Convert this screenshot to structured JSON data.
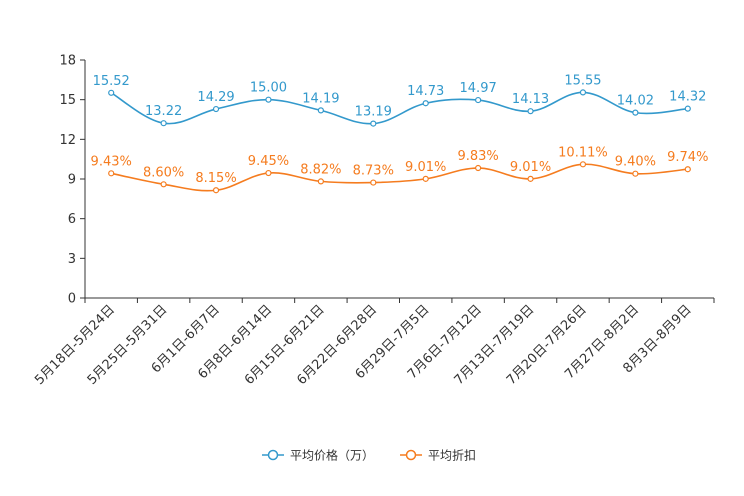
{
  "chart_data": {
    "type": "line",
    "title": "",
    "xlabel": "",
    "ylabel": "",
    "ylim": [
      0,
      18
    ],
    "yticks": [
      0,
      3,
      6,
      9,
      12,
      15,
      18
    ],
    "categories": [
      "5月18日-5月24日",
      "5月25日-5月31日",
      "6月1日-6月7日",
      "6月8日-6月14日",
      "6月15日-6月21日",
      "6月22日-6月28日",
      "6月29日-7月5日",
      "7月6日-7月12日",
      "7月13日-7月19日",
      "7月20日-7月26日",
      "7月27日-8月2日",
      "8月3日-8月9日"
    ],
    "series": [
      {
        "name": "平均价格（万）",
        "color": "#3399cc",
        "values": [
          15.52,
          13.22,
          14.29,
          15.0,
          14.19,
          13.19,
          14.73,
          14.97,
          14.13,
          15.55,
          14.02,
          14.32
        ],
        "labels": [
          "15.52",
          "13.22",
          "14.29",
          "15.00",
          "14.19",
          "13.19",
          "14.73",
          "14.97",
          "14.13",
          "15.55",
          "14.02",
          "14.32"
        ]
      },
      {
        "name": "平均折扣",
        "color": "#f57c1f",
        "values": [
          9.43,
          8.6,
          8.15,
          9.45,
          8.82,
          8.73,
          9.01,
          9.83,
          9.01,
          10.11,
          9.4,
          9.74
        ],
        "labels": [
          "9.43%",
          "8.60%",
          "8.15%",
          "9.45%",
          "8.82%",
          "8.73%",
          "9.01%",
          "9.83%",
          "9.01%",
          "10.11%",
          "9.40%",
          "9.74%"
        ]
      }
    ],
    "legend_position": "bottom-center",
    "grid": false
  }
}
